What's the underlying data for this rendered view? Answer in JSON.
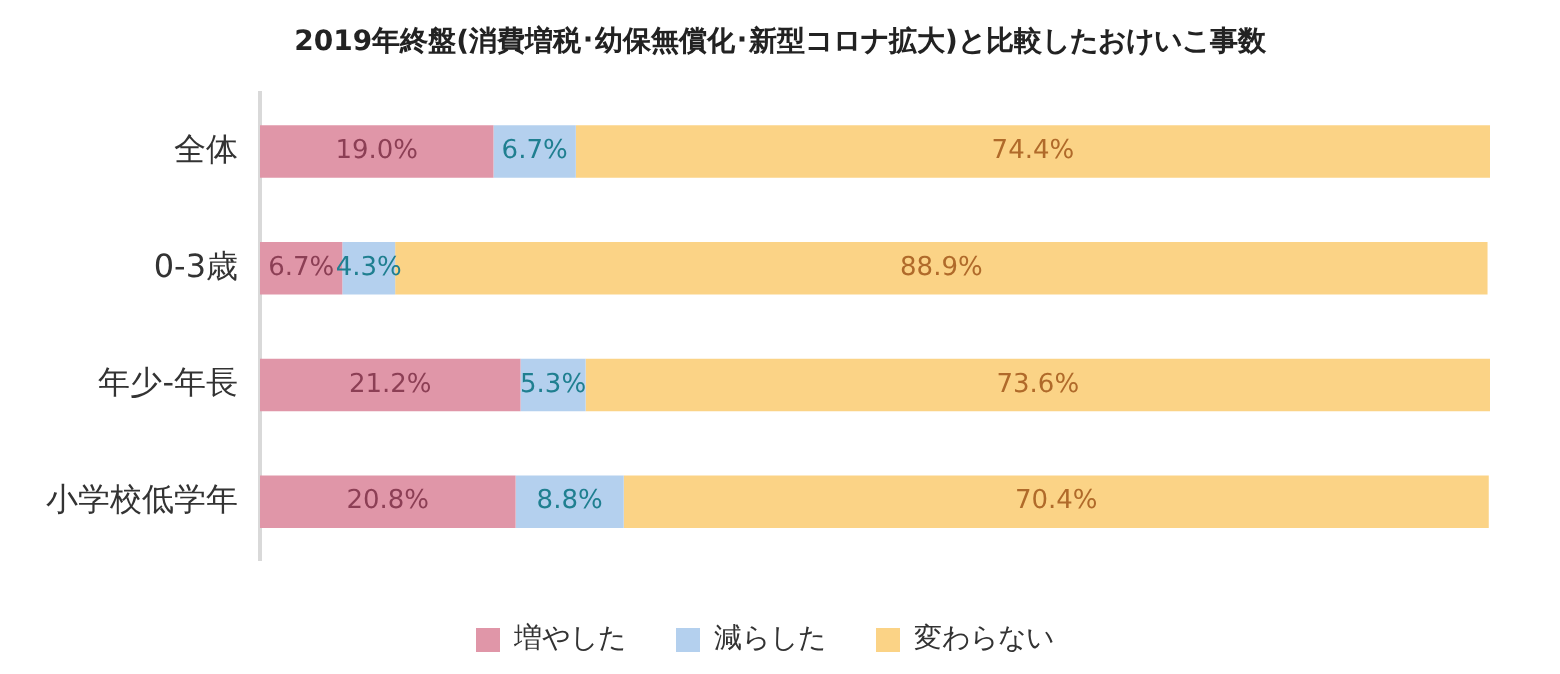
{
  "chart_data": {
    "type": "bar",
    "orientation": "horizontal",
    "stacked": true,
    "title": "2019年終盤(消費増税･幼保無償化･新型コロナ拡大)と比較したおけいこ事数",
    "categories": [
      "全体",
      "0-3歳",
      "年少-年長",
      "小学校低学年"
    ],
    "series": [
      {
        "name": "増やした",
        "color": "#e096a8",
        "values": [
          19.0,
          6.7,
          21.2,
          20.8
        ],
        "value_labels": [
          "19.0%",
          "6.7%",
          "21.2%",
          "20.8%"
        ]
      },
      {
        "name": "減らした",
        "color": "#b4d0ee",
        "values": [
          6.7,
          4.3,
          5.3,
          8.8
        ],
        "value_labels": [
          "6.7%",
          "4.3%",
          "5.3%",
          "8.8%"
        ]
      },
      {
        "name": "変わらない",
        "color": "#fbd386",
        "values": [
          74.4,
          88.9,
          73.6,
          70.4
        ],
        "value_labels": [
          "74.4%",
          "88.9%",
          "73.6%",
          "70.4%"
        ]
      }
    ],
    "xlim": [
      0,
      100.1
    ],
    "tick_labels": "y",
    "grid": false,
    "legend": "bottom"
  }
}
